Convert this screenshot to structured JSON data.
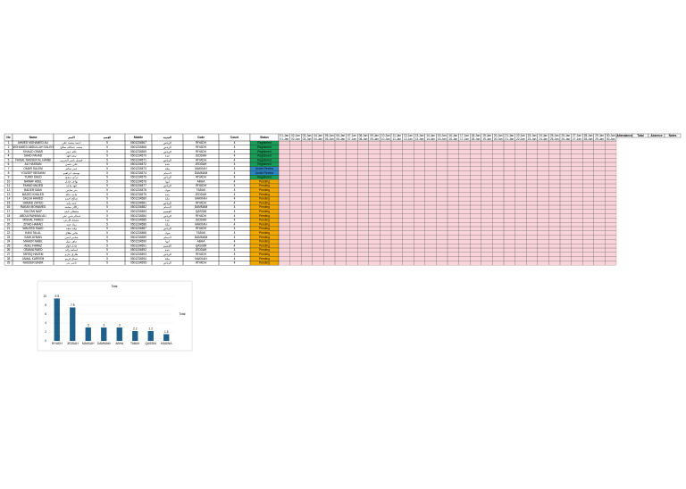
{
  "table": {
    "headers": [
      "No",
      "Name",
      "الاسم",
      "القسم",
      "Mobile",
      "المدينة",
      "Code",
      "Count",
      "Status"
    ],
    "date_headers": [
      "01-Jan",
      "02-Jan",
      "03-Jan",
      "04-Jan",
      "05-Jan",
      "06-Jan",
      "07-Jan",
      "08-Jan",
      "09-Jan",
      "10-Jan",
      "11-Jan",
      "12-Jan",
      "13-Jan",
      "14-Jan",
      "15-Jan",
      "16-Jan",
      "17-Jan",
      "18-Jan",
      "19-Jan",
      "20-Jan",
      "21-Jan",
      "22-Jan",
      "23-Jan",
      "24-Jan",
      "25-Jan",
      "26-Jan",
      "27-Jan",
      "28-Jan",
      "29-Jan",
      "30-Jan"
    ],
    "extra_headers": [
      "Attendance",
      "Total",
      "Absence",
      "Notes"
    ],
    "rows": [
      [
        "1",
        "AHMED MOHAMED ALI",
        "احمد محمد علي",
        "5",
        "0501234567",
        "الرياض",
        "RIYADH",
        "4",
        "Registered"
      ],
      [
        "2",
        "MOHAMED ABDULLAH SALEH",
        "محمد عبدالله صالح",
        "5",
        "0501234568",
        "الرياض",
        "RIYADH",
        "4",
        "Registered"
      ],
      [
        "3",
        "KHALID OMAR",
        "خالد عمر",
        "5",
        "0501234569",
        "الرياض",
        "RIYADH",
        "4",
        "Registered"
      ],
      [
        "4",
        "SAAD FAHAD",
        "سعد فهد",
        "5",
        "0501234570",
        "جدة",
        "JEDDAH",
        "4",
        "Registered"
      ],
      [
        "5",
        "FAISAL NASSER AL HARBI",
        "فيصل ناصر الحربي",
        "5",
        "0501234571",
        "الرياض",
        "RIYADH",
        "4",
        "Registered"
      ],
      [
        "6",
        "ALI HASSAN",
        "علي حسن",
        "5",
        "0501234572",
        "جدة",
        "JEDDAH",
        "4",
        "Registered"
      ],
      [
        "7",
        "OMAR SALEM",
        "عمر سالم",
        "5",
        "0501234573",
        "مكة",
        "MAKKAH",
        "4",
        "Under Review"
      ],
      [
        "8",
        "YOUSEF IBRAHIM",
        "يوسف ابراهيم",
        "5",
        "0501234574",
        "الدمام",
        "DAMMAM",
        "4",
        "Under Review"
      ],
      [
        "9",
        "TURKI SAUD",
        "تركي سعود",
        "5",
        "0501234575",
        "الرياض",
        "RIYADH",
        "4",
        "Registered"
      ],
      [
        "10",
        "NAWAF ADEL",
        "نواف عادل",
        "5",
        "0501234576",
        "ابها",
        "ABHA",
        "4",
        "Pending"
      ],
      [
        "11",
        "FAHAD MAJED",
        "فهد ماجد",
        "5",
        "0501234577",
        "الرياض",
        "RIYADH",
        "4",
        "Pending"
      ],
      [
        "12",
        "BADER SAMI",
        "بدر سامي",
        "5",
        "0501234578",
        "تبوك",
        "TABUK",
        "4",
        "Pending"
      ],
      [
        "13",
        "MAJED KHALED",
        "ماجد خالد",
        "5",
        "0501234579",
        "جدة",
        "JEDDAH",
        "4",
        "Pending"
      ],
      [
        "14",
        "SALEH AHMED",
        "صالح احمد",
        "5",
        "0501234580",
        "مكة",
        "MAKKAH",
        "4",
        "Pending"
      ],
      [
        "15",
        "HAMAD ZAYED",
        "حمد زايد",
        "5",
        "0501234581",
        "الرياض",
        "RIYADH",
        "4",
        "Pending"
      ],
      [
        "16",
        "RAKAN MOHAMED",
        "راكان محمد",
        "5",
        "0501234582",
        "الدمام",
        "DAMMAM",
        "4",
        "Pending"
      ],
      [
        "17",
        "SULTAN NAIF",
        "سلطان نايف",
        "5",
        "0501234583",
        "القصيم",
        "QASSIM",
        "4",
        "Pending"
      ],
      [
        "18",
        "ABDULRAHMAN ALI",
        "عبدالرحمن علي",
        "5",
        "0501234584",
        "الرياض",
        "RIYADH",
        "4",
        "Pending"
      ],
      [
        "19",
        "MISHAL FARES",
        "مشعل فارس",
        "5",
        "0501234585",
        "جدة",
        "JEDDAH",
        "4",
        "Pending"
      ],
      [
        "20",
        "ZIYAD HAMAD",
        "زياد حمد",
        "5",
        "0501234586",
        "مكة",
        "MAKKAH",
        "4",
        "Pending"
      ],
      [
        "21",
        "WALEED SAAD",
        "وليد سعد",
        "5",
        "0501234587",
        "الرياض",
        "RIYADH",
        "4",
        "Pending"
      ],
      [
        "22",
        "HANI TALAL",
        "هاني طلال",
        "5",
        "0501234588",
        "تبوك",
        "TABUK",
        "4",
        "Pending"
      ],
      [
        "23",
        "SAMI AYMAN",
        "سامي ايمن",
        "5",
        "0501234589",
        "الدمام",
        "DAMMAM",
        "4",
        "Pending"
      ],
      [
        "24",
        "MAHER NABIL",
        "ماهر نبيل",
        "5",
        "0501234590",
        "ابها",
        "ABHA",
        "4",
        "Pending"
      ],
      [
        "25",
        "ADEL FAWAZ",
        "عادل فواز",
        "5",
        "0501234591",
        "القصيم",
        "QASSIM",
        "4",
        "Pending"
      ],
      [
        "26",
        "OSAMA RAED",
        "اسامة رائد",
        "5",
        "0501234592",
        "جدة",
        "JEDDAH",
        "4",
        "Pending"
      ],
      [
        "27",
        "TAREQ HAZEM",
        "طارق حازم",
        "5",
        "0501234593",
        "الرياض",
        "RIYADH",
        "4",
        "Pending"
      ],
      [
        "28",
        "JAMAL KAREEM",
        "جمال كريم",
        "5",
        "0501234594",
        "مكة",
        "MAKKAH",
        "4",
        "Pending"
      ],
      [
        "29",
        "NASSER BADR",
        "ناصر بدر",
        "5",
        "0501234595",
        "الرياض",
        "RIYADH",
        "4",
        "Pending"
      ]
    ],
    "status_colors": [
      "#1a9e5a",
      "#1a9e5a",
      "#1a9e5a",
      "#1a9e5a",
      "#1a9e5a",
      "#1a9e5a",
      "#2e86c1",
      "#2e86c1",
      "#1a9e5a",
      "#f0a800",
      "#f0a800",
      "#f0a800",
      "#f0a800",
      "#f0a800",
      "#f0a800",
      "#f0a800",
      "#f0a800",
      "#f0a800",
      "#f0a800",
      "#f0a800",
      "#f0a800",
      "#f0a800",
      "#f0a800",
      "#f0a800",
      "#f0a800",
      "#f0a800",
      "#f0a800",
      "#f0a800",
      "#f0a800"
    ]
  },
  "chart": {
    "type": "bar",
    "title": "Total",
    "legend": "Total",
    "color": "#1f5f8b",
    "categories": [
      "RIYADH",
      "JEDDAH",
      "MAKKAH",
      "DAMMAM",
      "ABHA",
      "TABUK",
      "QASSIM",
      "MADINA"
    ],
    "values": [
      9.5,
      7.5,
      3,
      3,
      3,
      2.2,
      2.2,
      1.5
    ],
    "ylim": [
      0,
      10
    ],
    "yticks": [
      0,
      2,
      4,
      6,
      8,
      10
    ]
  }
}
